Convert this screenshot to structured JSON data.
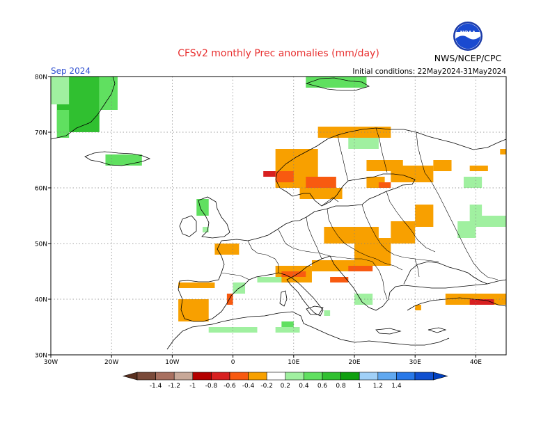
{
  "header": {
    "title": "CFSv2 monthly Prec anomalies (mm/day)",
    "title_color": "#e83030",
    "org": "NWS/NCEP/CPC",
    "logo_text": "NOAA",
    "month": "Sep 2024",
    "month_color": "#3050d0",
    "initial_conditions": "Initial conditions: 22May2024-31May2024"
  },
  "map": {
    "lon_range": [
      -30,
      45
    ],
    "lat_range": [
      30,
      80
    ],
    "lat_labels": [
      "80N",
      "70N",
      "60N",
      "50N",
      "40N",
      "30N"
    ],
    "lon_labels": [
      "30W",
      "20W",
      "10W",
      "0",
      "10E",
      "20E",
      "30E",
      "40E"
    ],
    "grid": true
  },
  "colorbar": {
    "tick_labels": [
      "-1.4",
      "-1.2",
      "-1",
      "-0.8",
      "-0.6",
      "-0.4",
      "-0.2",
      "0.2",
      "0.4",
      "0.6",
      "0.8",
      "1",
      "1.2",
      "1.4"
    ],
    "colors": [
      "#7a4a3a",
      "#a87060",
      "#c8a898",
      "#b40000",
      "#d82020",
      "#f85a10",
      "#f8a000",
      "#ffffff",
      "#a0f0a0",
      "#60e060",
      "#30c030",
      "#10a010",
      "#a0d0f8",
      "#60a8f0",
      "#2878e8",
      "#1050d0"
    ],
    "end_left_color": "#5a3020",
    "end_right_color": "#0040c0"
  },
  "chart_data": {
    "type": "heatmap",
    "title": "CFSv2 monthly Prec anomalies (mm/day)",
    "period": "Sep 2024",
    "initial_conditions": "Initial conditions: 22May2024-31May2024",
    "units": "mm/day",
    "cell_deg": 1,
    "regions": [
      {
        "level": "0.6",
        "color": "#30c030",
        "lon": [
          -29,
          -22
        ],
        "lat": [
          70,
          80
        ]
      },
      {
        "level": "0.4",
        "color": "#60e060",
        "lon": [
          -29,
          -27
        ],
        "lat": [
          69,
          74
        ]
      },
      {
        "level": "0.4",
        "color": "#60e060",
        "lon": [
          -22,
          -19
        ],
        "lat": [
          74,
          80
        ]
      },
      {
        "level": "0.2",
        "color": "#a0f0a0",
        "lon": [
          -30,
          -27
        ],
        "lat": [
          75,
          80
        ]
      },
      {
        "level": "0.4",
        "color": "#60e060",
        "lon": [
          -21,
          -15
        ],
        "lat": [
          64,
          66
        ]
      },
      {
        "level": "0.4",
        "color": "#60e060",
        "lon": [
          -6,
          -4
        ],
        "lat": [
          55,
          58
        ]
      },
      {
        "level": "0.2",
        "color": "#a0f0a0",
        "lon": [
          -5,
          -4
        ],
        "lat": [
          52,
          53
        ]
      },
      {
        "level": "0.4",
        "color": "#60e060",
        "lon": [
          12,
          22
        ],
        "lat": [
          78,
          80
        ]
      },
      {
        "level": "0.2",
        "color": "#a0f0a0",
        "lon": [
          19,
          24
        ],
        "lat": [
          67,
          69
        ]
      },
      {
        "level": "-0.2",
        "color": "#f8a000",
        "lon": [
          7,
          14
        ],
        "lat": [
          60,
          67
        ]
      },
      {
        "level": "-0.4",
        "color": "#f85a10",
        "lon": [
          7,
          10
        ],
        "lat": [
          61,
          63
        ]
      },
      {
        "level": "-0.6",
        "color": "#d82020",
        "lon": [
          5,
          7
        ],
        "lat": [
          62,
          63
        ]
      },
      {
        "level": "-0.4",
        "color": "#f85a10",
        "lon": [
          12,
          17
        ],
        "lat": [
          60,
          62
        ]
      },
      {
        "level": "-0.2",
        "color": "#f8a000",
        "lon": [
          11,
          18
        ],
        "lat": [
          58,
          60
        ]
      },
      {
        "level": "-0.2",
        "color": "#f8a000",
        "lon": [
          14,
          26
        ],
        "lat": [
          69,
          71
        ]
      },
      {
        "level": "-0.2",
        "color": "#f8a000",
        "lon": [
          22,
          28
        ],
        "lat": [
          63,
          65
        ]
      },
      {
        "level": "-0.2",
        "color": "#f8a000",
        "lon": [
          22,
          25
        ],
        "lat": [
          60,
          62
        ]
      },
      {
        "level": "-0.4",
        "color": "#f85a10",
        "lon": [
          24,
          26
        ],
        "lat": [
          60,
          61
        ]
      },
      {
        "level": "-0.2",
        "color": "#f8a000",
        "lon": [
          26,
          33
        ],
        "lat": [
          61,
          64
        ]
      },
      {
        "level": "-0.2",
        "color": "#f8a000",
        "lon": [
          33,
          36
        ],
        "lat": [
          63,
          65
        ]
      },
      {
        "level": "-0.2",
        "color": "#f8a000",
        "lon": [
          39,
          42
        ],
        "lat": [
          63,
          64
        ]
      },
      {
        "level": "-0.2",
        "color": "#f8a000",
        "lon": [
          44,
          45
        ],
        "lat": [
          66,
          67
        ]
      },
      {
        "level": "0.2",
        "color": "#a0f0a0",
        "lon": [
          38,
          41
        ],
        "lat": [
          60,
          62
        ]
      },
      {
        "level": "-0.2",
        "color": "#f8a000",
        "lon": [
          30,
          33
        ],
        "lat": [
          53,
          57
        ]
      },
      {
        "level": "-0.2",
        "color": "#f8a000",
        "lon": [
          15,
          24
        ],
        "lat": [
          50,
          53
        ]
      },
      {
        "level": "-0.2",
        "color": "#f8a000",
        "lon": [
          20,
          26
        ],
        "lat": [
          46,
          51
        ]
      },
      {
        "level": "-0.2",
        "color": "#f8a000",
        "lon": [
          26,
          30
        ],
        "lat": [
          50,
          54
        ]
      },
      {
        "level": "0.2",
        "color": "#a0f0a0",
        "lon": [
          37,
          40
        ],
        "lat": [
          51,
          54
        ]
      },
      {
        "level": "0.2",
        "color": "#a0f0a0",
        "lon": [
          40,
          45
        ],
        "lat": [
          53,
          55
        ]
      },
      {
        "level": "0.2",
        "color": "#a0f0a0",
        "lon": [
          39,
          41
        ],
        "lat": [
          54,
          57
        ]
      },
      {
        "level": "-0.2",
        "color": "#f8a000",
        "lon": [
          -3,
          1
        ],
        "lat": [
          48,
          50
        ]
      },
      {
        "level": "-0.2",
        "color": "#f8a000",
        "lon": [
          13,
          20
        ],
        "lat": [
          45,
          47
        ]
      },
      {
        "level": "-0.2",
        "color": "#f8a000",
        "lon": [
          7,
          13
        ],
        "lat": [
          43,
          46
        ]
      },
      {
        "level": "-0.4",
        "color": "#f85a10",
        "lon": [
          8,
          12
        ],
        "lat": [
          44,
          45
        ]
      },
      {
        "level": "-0.4",
        "color": "#f85a10",
        "lon": [
          16,
          19
        ],
        "lat": [
          43,
          44
        ]
      },
      {
        "level": "-0.4",
        "color": "#f85a10",
        "lon": [
          19,
          23
        ],
        "lat": [
          45,
          46
        ]
      },
      {
        "level": "-0.2",
        "color": "#f8a000",
        "lon": [
          -9,
          -4
        ],
        "lat": [
          36,
          40
        ]
      },
      {
        "level": "-0.4",
        "color": "#f85a10",
        "lon": [
          -1,
          0
        ],
        "lat": [
          39,
          41
        ]
      },
      {
        "level": "-0.6",
        "color": "#d82020",
        "lon": [
          -8,
          -6
        ],
        "lat": [
          42,
          43
        ]
      },
      {
        "level": "-0.2",
        "color": "#f8a000",
        "lon": [
          -9,
          -3
        ],
        "lat": [
          42,
          43
        ]
      },
      {
        "level": "0.2",
        "color": "#a0f0a0",
        "lon": [
          0,
          2
        ],
        "lat": [
          41,
          43
        ]
      },
      {
        "level": "0.2",
        "color": "#a0f0a0",
        "lon": [
          4,
          8
        ],
        "lat": [
          43,
          44
        ]
      },
      {
        "level": "0.2",
        "color": "#a0f0a0",
        "lon": [
          -4,
          4
        ],
        "lat": [
          34,
          35
        ]
      },
      {
        "level": "0.4",
        "color": "#60e060",
        "lon": [
          8,
          10
        ],
        "lat": [
          34,
          36
        ]
      },
      {
        "level": "0.2",
        "color": "#a0f0a0",
        "lon": [
          7,
          11
        ],
        "lat": [
          34,
          35
        ]
      },
      {
        "level": "0.2",
        "color": "#a0f0a0",
        "lon": [
          20,
          23
        ],
        "lat": [
          39,
          41
        ]
      },
      {
        "level": "0.2",
        "color": "#a0f0a0",
        "lon": [
          15,
          16
        ],
        "lat": [
          37,
          38
        ]
      },
      {
        "level": "-0.2",
        "color": "#f8a000",
        "lon": [
          35,
          45
        ],
        "lat": [
          39,
          41
        ]
      },
      {
        "level": "-0.6",
        "color": "#d82020",
        "lon": [
          39,
          43
        ],
        "lat": [
          39,
          40
        ]
      },
      {
        "level": "-0.2",
        "color": "#f8a000",
        "lon": [
          30,
          31
        ],
        "lat": [
          38,
          39
        ]
      }
    ]
  }
}
